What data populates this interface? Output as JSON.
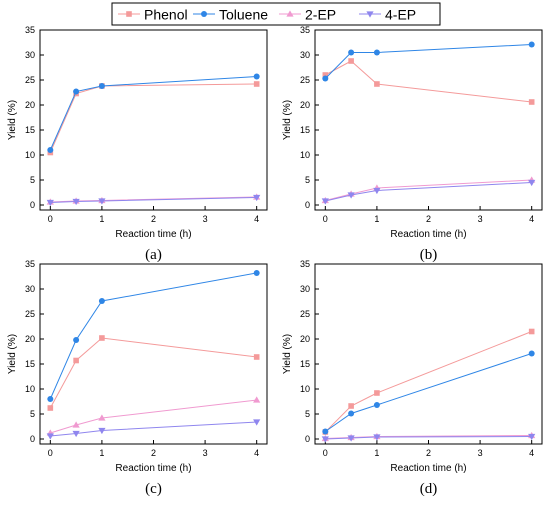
{
  "legend": {
    "items": [
      {
        "label": "Phenol",
        "color": "#f49a9a",
        "marker": "square",
        "icon": "square-marker-icon"
      },
      {
        "label": "Toluene",
        "color": "#2f86e6",
        "marker": "circle",
        "icon": "circle-marker-icon"
      },
      {
        "label": "2-EP",
        "color": "#f09ad0",
        "marker": "triangle-up",
        "icon": "triangle-up-marker-icon"
      },
      {
        "label": "4-EP",
        "color": "#8f86ee",
        "marker": "triangle-down",
        "icon": "triangle-down-marker-icon"
      }
    ]
  },
  "chart_data": [
    {
      "type": "line",
      "panel_label": "(a)",
      "xlabel": "Reaction time (h)",
      "ylabel": "Yield (%)",
      "xlim": [
        -0.2,
        4.2
      ],
      "ylim": [
        -1,
        35
      ],
      "xticks": [
        0,
        1,
        2,
        3,
        4
      ],
      "yticks": [
        0,
        5,
        10,
        15,
        20,
        25,
        30,
        35
      ],
      "x": [
        0,
        0.5,
        1,
        4
      ],
      "series": [
        {
          "name": "Phenol",
          "values": [
            10.5,
            22.3,
            23.8,
            24.2
          ]
        },
        {
          "name": "Toluene",
          "values": [
            11.0,
            22.7,
            23.8,
            25.7
          ]
        },
        {
          "name": "2-EP",
          "values": [
            0.6,
            0.8,
            0.9,
            1.6
          ]
        },
        {
          "name": "4-EP",
          "values": [
            0.5,
            0.7,
            0.8,
            1.5
          ]
        }
      ]
    },
    {
      "type": "line",
      "panel_label": "(b)",
      "xlabel": "Reaction time (h)",
      "ylabel": "Yield (%)",
      "xlim": [
        -0.2,
        4.2
      ],
      "ylim": [
        -1,
        35
      ],
      "xticks": [
        0,
        1,
        2,
        3,
        4
      ],
      "yticks": [
        0,
        5,
        10,
        15,
        20,
        25,
        30,
        35
      ],
      "x": [
        0,
        0.5,
        1,
        4
      ],
      "series": [
        {
          "name": "Phenol",
          "values": [
            26.0,
            28.8,
            24.2,
            20.6
          ]
        },
        {
          "name": "Toluene",
          "values": [
            25.3,
            30.5,
            30.5,
            32.1
          ]
        },
        {
          "name": "2-EP",
          "values": [
            0.9,
            2.2,
            3.4,
            5.0
          ]
        },
        {
          "name": "4-EP",
          "values": [
            0.8,
            2.0,
            2.9,
            4.5
          ]
        }
      ]
    },
    {
      "type": "line",
      "panel_label": "(c)",
      "xlabel": "Reaction time (h)",
      "ylabel": "Yield (%)",
      "xlim": [
        -0.2,
        4.2
      ],
      "ylim": [
        -1,
        35
      ],
      "xticks": [
        0,
        1,
        2,
        3,
        4
      ],
      "yticks": [
        0,
        5,
        10,
        15,
        20,
        25,
        30,
        35
      ],
      "x": [
        0,
        0.5,
        1,
        4
      ],
      "series": [
        {
          "name": "Phenol",
          "values": [
            6.2,
            15.7,
            20.2,
            16.4
          ]
        },
        {
          "name": "Toluene",
          "values": [
            8.0,
            19.8,
            27.6,
            33.2
          ]
        },
        {
          "name": "2-EP",
          "values": [
            1.2,
            2.8,
            4.2,
            7.8
          ]
        },
        {
          "name": "4-EP",
          "values": [
            0.6,
            1.1,
            1.7,
            3.4
          ]
        }
      ]
    },
    {
      "type": "line",
      "panel_label": "(d)",
      "xlabel": "Reaction time (h)",
      "ylabel": "Yield (%)",
      "xlim": [
        -0.2,
        4.2
      ],
      "ylim": [
        -1,
        35
      ],
      "xticks": [
        0,
        1,
        2,
        3,
        4
      ],
      "yticks": [
        0,
        5,
        10,
        15,
        20,
        25,
        30,
        35
      ],
      "x": [
        0,
        0.5,
        1,
        4
      ],
      "series": [
        {
          "name": "Phenol",
          "values": [
            1.4,
            6.6,
            9.2,
            21.5
          ]
        },
        {
          "name": "Toluene",
          "values": [
            1.5,
            5.1,
            6.8,
            17.1
          ]
        },
        {
          "name": "2-EP",
          "values": [
            0.1,
            0.3,
            0.5,
            0.7
          ]
        },
        {
          "name": "4-EP",
          "values": [
            0.0,
            0.2,
            0.4,
            0.5
          ]
        }
      ]
    }
  ]
}
